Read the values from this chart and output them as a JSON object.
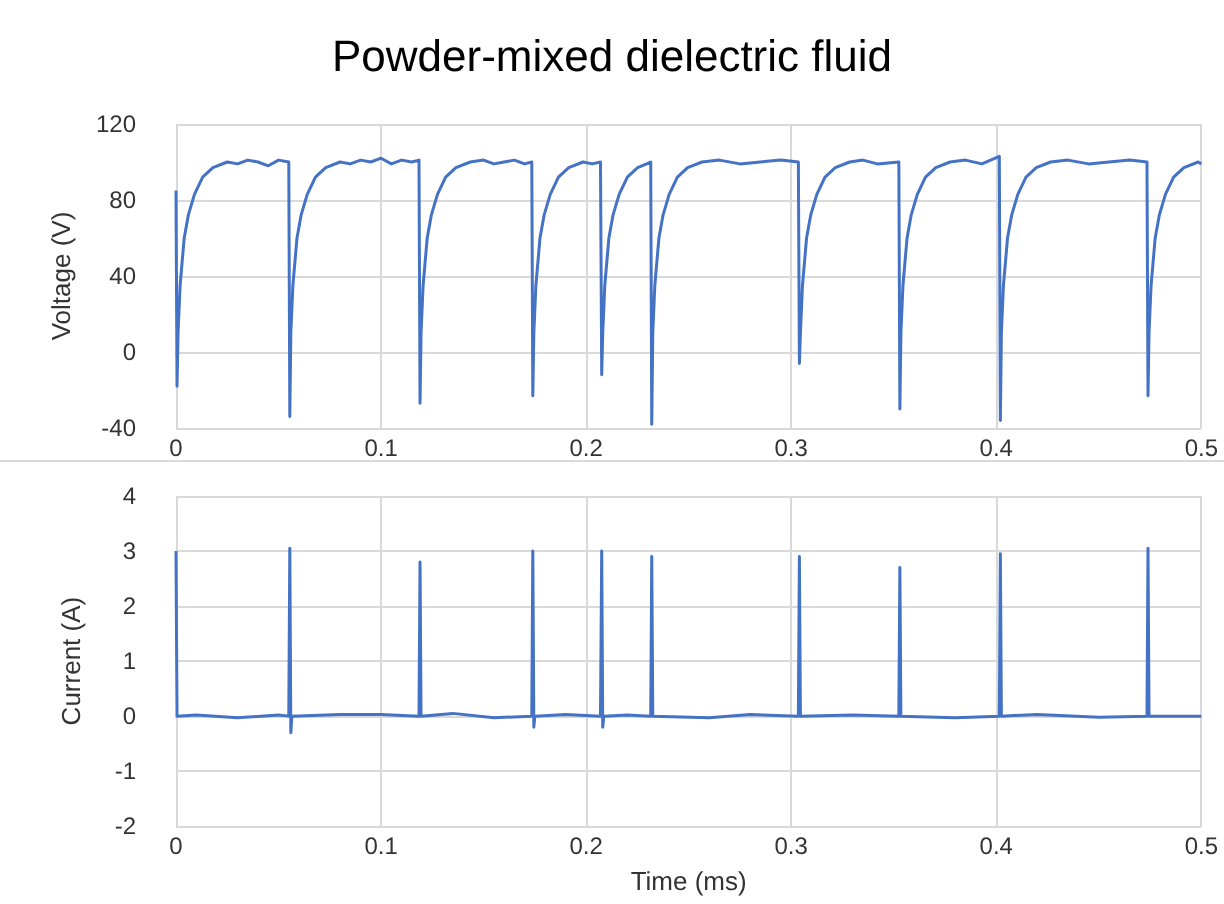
{
  "chart_data": [
    {
      "type": "line",
      "title": "Powder-mixed dielectric fluid",
      "ylabel": "Voltage (V)",
      "color": "#4472c4",
      "grid": true,
      "marker": "none",
      "line_style": "solid",
      "xlim": [
        0,
        0.5
      ],
      "xticks": [
        0,
        0.1,
        0.2,
        0.3,
        0.4,
        0.5
      ],
      "ylim": [
        -40,
        120
      ],
      "yticks": [
        -40,
        0,
        40,
        80,
        120
      ],
      "x": [
        0,
        0.0005,
        0.001,
        0.002,
        0.004,
        0.006,
        0.009,
        0.013,
        0.018,
        0.025,
        0.03,
        0.035,
        0.04,
        0.045,
        0.05,
        0.055,
        0.0555,
        0.056,
        0.057,
        0.059,
        0.061,
        0.064,
        0.068,
        0.073,
        0.08,
        0.085,
        0.09,
        0.095,
        0.1,
        0.105,
        0.11,
        0.115,
        0.1185,
        0.119,
        0.1195,
        0.1205,
        0.1225,
        0.1245,
        0.1275,
        0.1315,
        0.1365,
        0.1435,
        0.15,
        0.155,
        0.16,
        0.165,
        0.17,
        0.1735,
        0.174,
        0.1745,
        0.1755,
        0.1775,
        0.1795,
        0.1825,
        0.1865,
        0.1915,
        0.1985,
        0.203,
        0.207,
        0.2076,
        0.2081,
        0.2091,
        0.2111,
        0.2131,
        0.2161,
        0.2201,
        0.2251,
        0.2295,
        0.2315,
        0.232,
        0.2325,
        0.2335,
        0.2355,
        0.2375,
        0.2405,
        0.2445,
        0.2495,
        0.2565,
        0.265,
        0.275,
        0.285,
        0.295,
        0.3035,
        0.304,
        0.3045,
        0.3055,
        0.3075,
        0.3095,
        0.3125,
        0.3165,
        0.3215,
        0.3285,
        0.335,
        0.342,
        0.3525,
        0.353,
        0.3535,
        0.3545,
        0.3565,
        0.3585,
        0.3615,
        0.3655,
        0.3705,
        0.3775,
        0.385,
        0.393,
        0.4015,
        0.402,
        0.4025,
        0.4035,
        0.4055,
        0.4075,
        0.4105,
        0.4145,
        0.4195,
        0.4265,
        0.435,
        0.445,
        0.455,
        0.465,
        0.4735,
        0.474,
        0.4745,
        0.4755,
        0.4775,
        0.4795,
        0.4825,
        0.4865,
        0.4915,
        0.4985,
        0.5
      ],
      "values": [
        85,
        -18,
        10,
        35,
        60,
        72,
        83,
        92,
        97,
        100,
        99,
        101,
        100,
        98,
        101,
        100,
        -34,
        10,
        35,
        60,
        72,
        83,
        92,
        97,
        100,
        99,
        101,
        100,
        102,
        99,
        101,
        100,
        101,
        -27,
        10,
        35,
        60,
        72,
        83,
        92,
        97,
        100,
        101,
        99,
        100,
        101,
        99,
        100,
        -23,
        10,
        35,
        60,
        72,
        83,
        92,
        97,
        100,
        99,
        100,
        -12,
        10,
        35,
        60,
        72,
        83,
        92,
        97,
        99,
        100,
        -38,
        10,
        35,
        60,
        72,
        83,
        92,
        97,
        100,
        101,
        99,
        100,
        101,
        100,
        -6,
        10,
        35,
        60,
        72,
        83,
        92,
        97,
        100,
        101,
        99,
        100,
        -30,
        10,
        35,
        60,
        72,
        83,
        92,
        97,
        100,
        101,
        99,
        103,
        -36,
        10,
        35,
        60,
        72,
        83,
        92,
        97,
        100,
        101,
        99,
        100,
        101,
        100,
        -23,
        10,
        35,
        60,
        72,
        83,
        92,
        97,
        100,
        99
      ]
    },
    {
      "type": "line",
      "xlabel": "Time (ms)",
      "ylabel": "Current (A)",
      "color": "#4472c4",
      "grid": true,
      "marker": "none",
      "line_style": "solid",
      "xlim": [
        0,
        0.5
      ],
      "xticks": [
        0,
        0.1,
        0.2,
        0.3,
        0.4,
        0.5
      ],
      "ylim": [
        -2,
        4
      ],
      "yticks": [
        -2,
        -1,
        0,
        1,
        2,
        3,
        4
      ],
      "x": [
        0,
        0.0005,
        0.01,
        0.03,
        0.05,
        0.055,
        0.0555,
        0.056,
        0.0565,
        0.08,
        0.1,
        0.1185,
        0.119,
        0.1195,
        0.135,
        0.155,
        0.1735,
        0.174,
        0.1745,
        0.175,
        0.19,
        0.207,
        0.2076,
        0.2081,
        0.2086,
        0.22,
        0.2315,
        0.232,
        0.2325,
        0.26,
        0.28,
        0.3035,
        0.304,
        0.3045,
        0.33,
        0.3525,
        0.353,
        0.3535,
        0.38,
        0.4015,
        0.402,
        0.4025,
        0.42,
        0.45,
        0.4735,
        0.474,
        0.4745,
        0.5
      ],
      "values": [
        3.0,
        0,
        0.02,
        -0.03,
        0.02,
        0,
        3.05,
        -0.3,
        0,
        0.03,
        0.03,
        0,
        2.8,
        0,
        0.05,
        -0.03,
        0,
        3.0,
        -0.2,
        0,
        0.03,
        0,
        3.0,
        -0.2,
        0,
        0.02,
        0,
        2.9,
        0,
        -0.03,
        0.03,
        0,
        2.9,
        0,
        0.02,
        0,
        2.7,
        0,
        -0.03,
        0,
        2.95,
        0,
        0.03,
        -0.02,
        0,
        3.05,
        0,
        0
      ]
    }
  ]
}
